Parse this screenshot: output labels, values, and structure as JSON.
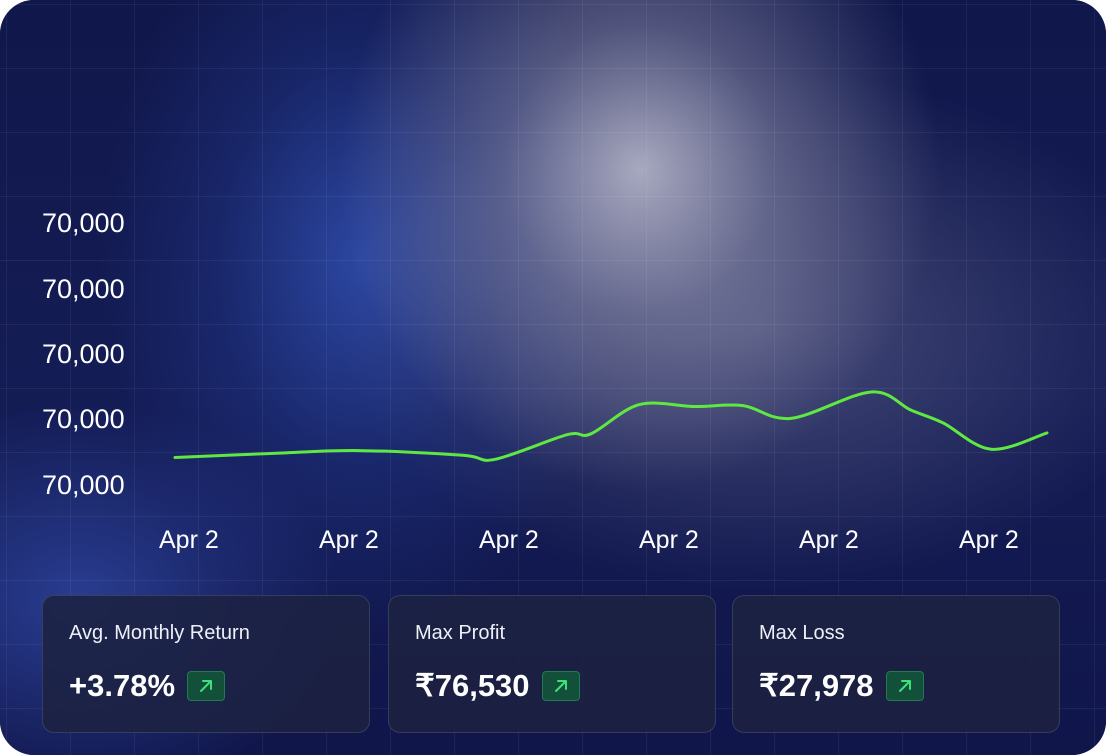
{
  "chart_data": {
    "type": "line",
    "y_tick_labels": [
      "70,000",
      "70,000",
      "70,000",
      "70,000",
      "70,000"
    ],
    "x_tick_labels": [
      "Apr 2",
      "Apr 2",
      "Apr 2",
      "Apr 2",
      "Apr 2",
      "Apr 2"
    ],
    "series": [
      {
        "color": "#5ee841",
        "x": [
          0,
          0.6,
          1.15,
          1.8,
          2.0,
          2.45,
          2.6,
          2.9,
          3.25,
          3.55,
          3.85,
          4.35,
          4.6,
          4.8,
          5.1,
          5.45
        ],
        "y": [
          3.6,
          3.82,
          3.98,
          3.72,
          3.5,
          4.85,
          4.9,
          6.5,
          6.4,
          6.45,
          5.75,
          7.2,
          6.2,
          5.5,
          4.05,
          4.95
        ]
      }
    ],
    "colors": {
      "line": "#5ee841",
      "axis_text": "#ffffff"
    }
  },
  "stats": [
    {
      "label": "Avg. Monthly Return",
      "value": "+3.78%",
      "icon": "arrow-up-right-icon",
      "badge_color": "#13503a"
    },
    {
      "label": "Max Profit",
      "value": "₹76,530",
      "icon": "arrow-up-right-icon",
      "badge_color": "#13503a"
    },
    {
      "label": "Max Loss",
      "value": "₹27,978",
      "icon": "arrow-up-right-icon",
      "badge_color": "#13503a"
    }
  ]
}
